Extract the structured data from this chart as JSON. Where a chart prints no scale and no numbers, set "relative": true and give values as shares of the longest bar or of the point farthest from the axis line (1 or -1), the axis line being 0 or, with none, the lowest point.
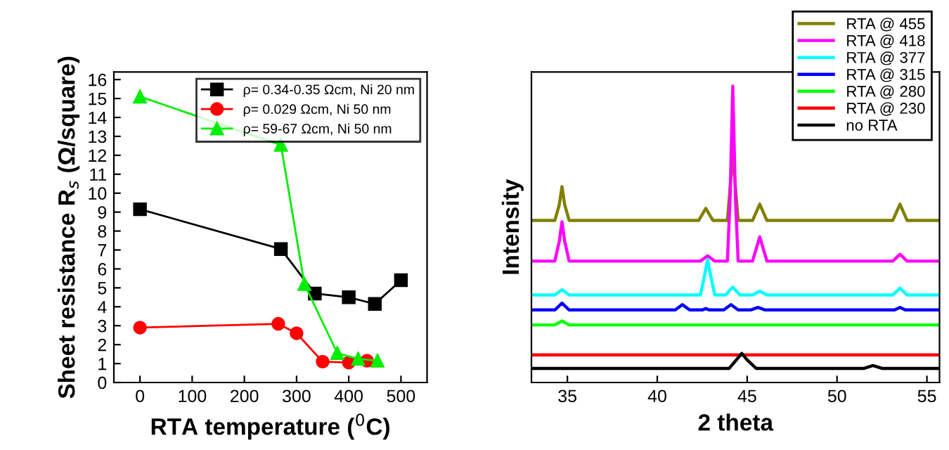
{
  "chart_data": [
    {
      "type": "line",
      "xlabel": "RTA temperature ($^{0}$C)",
      "ylabel": "Sheet resistance R$_{s}$ (Ω/square)",
      "xlim": [
        -50,
        550
      ],
      "xticks": [
        0,
        100,
        200,
        300,
        400,
        500
      ],
      "ylim": [
        0,
        16.4
      ],
      "yticks": [
        0,
        1,
        2,
        3,
        4,
        5,
        6,
        7,
        8,
        9,
        10,
        11,
        12,
        13,
        14,
        15,
        16
      ],
      "legend": "top right",
      "grid": false,
      "line_style": "solid",
      "series": [
        {
          "name": "ρ= 0.34-0.35 Ωcm, Ni 20 nm",
          "color": "#000000",
          "marker": "square",
          "x": [
            0,
            270,
            335,
            400,
            450,
            500
          ],
          "values": [
            9.15,
            7.05,
            4.7,
            4.5,
            4.15,
            5.4
          ]
        },
        {
          "name": "ρ= 0.029 Ωcm, Ni 50 nm",
          "color": "#ff0000",
          "marker": "circle",
          "x": [
            0,
            265,
            300,
            350,
            400,
            435
          ],
          "values": [
            2.9,
            3.1,
            2.6,
            1.1,
            1.05,
            1.15
          ]
        },
        {
          "name": "ρ= 59-67 Ωcm, Ni 50 nm",
          "color": "#00ee00",
          "marker": "triangle",
          "x": [
            0,
            270,
            315,
            378,
            418,
            455
          ],
          "values": [
            15.1,
            12.55,
            5.2,
            1.55,
            1.25,
            1.15
          ]
        }
      ]
    },
    {
      "type": "line",
      "xlabel": "2 theta",
      "ylabel": "Intensity",
      "xlim": [
        33,
        55.7
      ],
      "xticks": [
        35,
        40,
        45,
        50,
        55
      ],
      "relative": true,
      "tick_labels": "x",
      "legend": "top right",
      "grid": false,
      "line_style": "solid",
      "series": [
        {
          "name": "RTA @ 455",
          "color": "#808000",
          "x": [
            33,
            34.3,
            34.55,
            34.7,
            34.85,
            35.1,
            42.3,
            42.7,
            43.1,
            43.9,
            44.05,
            44.2,
            44.35,
            44.5,
            45.3,
            45.7,
            46.1,
            53.1,
            53.5,
            53.9,
            55.7
          ],
          "values": [
            0.524,
            0.524,
            0.58,
            0.644,
            0.58,
            0.524,
            0.524,
            0.567,
            0.524,
            0.524,
            0.64,
            0.755,
            0.64,
            0.524,
            0.524,
            0.582,
            0.524,
            0.524,
            0.582,
            0.524,
            0.524
          ]
        },
        {
          "name": "RTA @ 418",
          "color": "#ff00ff",
          "x": [
            33,
            34.3,
            34.55,
            34.7,
            34.85,
            35.1,
            42.4,
            42.8,
            43.2,
            43.9,
            44.05,
            44.2,
            44.35,
            44.5,
            45.3,
            45.7,
            46.1,
            53.1,
            53.5,
            53.9,
            55.7
          ],
          "values": [
            0.38,
            0.38,
            0.45,
            0.519,
            0.45,
            0.38,
            0.38,
            0.399,
            0.38,
            0.38,
            0.6,
            1.0,
            0.6,
            0.38,
            0.38,
            0.466,
            0.38,
            0.38,
            0.404,
            0.38,
            0.38
          ]
        },
        {
          "name": "RTA @ 377",
          "color": "#00ffff",
          "x": [
            33,
            34.3,
            34.7,
            35.1,
            42.4,
            42.6,
            42.8,
            43.0,
            43.2,
            43.8,
            44.2,
            44.6,
            45.3,
            45.7,
            46.1,
            53.1,
            53.5,
            53.9,
            55.7
          ],
          "values": [
            0.26,
            0.26,
            0.279,
            0.26,
            0.26,
            0.32,
            0.385,
            0.32,
            0.26,
            0.26,
            0.288,
            0.26,
            0.26,
            0.274,
            0.26,
            0.26,
            0.284,
            0.26,
            0.26
          ]
        },
        {
          "name": "RTA @ 315",
          "color": "#0000ff",
          "x": [
            33,
            34.3,
            34.7,
            35.1,
            41.0,
            41.4,
            41.8,
            42.5,
            42.7,
            42.9,
            43.7,
            44.1,
            44.5,
            45.2,
            45.6,
            46.0,
            53.2,
            53.5,
            53.8,
            55.7
          ],
          "values": [
            0.207,
            0.207,
            0.231,
            0.207,
            0.207,
            0.226,
            0.207,
            0.207,
            0.212,
            0.207,
            0.207,
            0.226,
            0.207,
            0.207,
            0.216,
            0.207,
            0.207,
            0.216,
            0.207,
            0.207
          ]
        },
        {
          "name": "RTA @ 280",
          "color": "#00ff00",
          "x": [
            33,
            34.3,
            34.7,
            35.1,
            55.7
          ],
          "values": [
            0.154,
            0.154,
            0.168,
            0.154,
            0.154
          ]
        },
        {
          "name": "RTA @ 230",
          "color": "#ff0000",
          "x": [
            33,
            55.7
          ],
          "values": [
            0.048,
            0.048
          ]
        },
        {
          "name": "no RTA",
          "color": "#000000",
          "x": [
            33,
            44.0,
            44.4,
            44.7,
            45.0,
            45.5,
            51.5,
            52,
            52.5,
            55.7
          ],
          "values": [
            0,
            0,
            0.03,
            0.053,
            0.03,
            0,
            0,
            0.01,
            0,
            0
          ]
        }
      ]
    }
  ]
}
